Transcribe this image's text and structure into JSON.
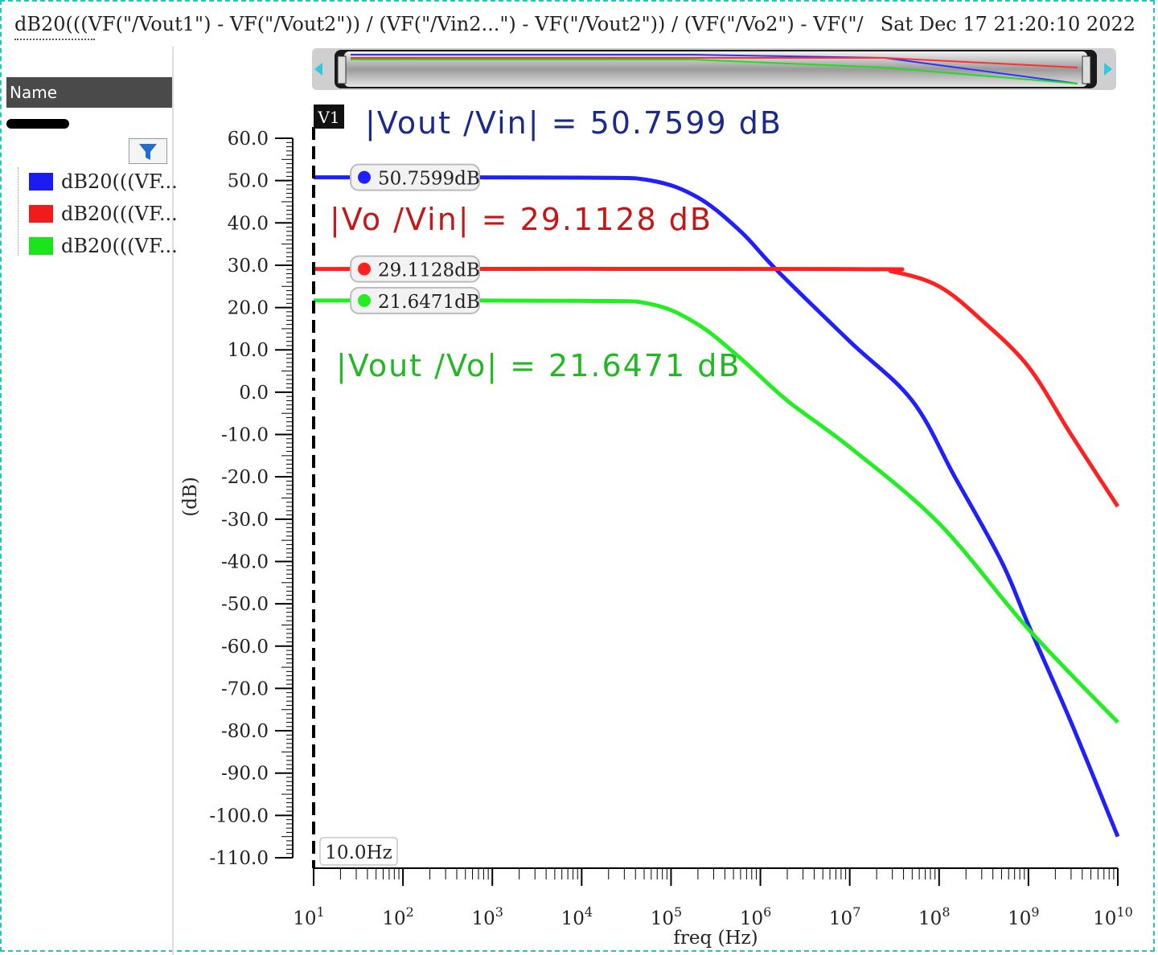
{
  "header": {
    "title": "dB20(((VF(\"/Vout1\") - VF(\"/Vout2\")) / (VF(\"/Vin2...\") - VF(\"/Vout2\")) / (VF(\"/Vo2\") - VF(\"/",
    "timestamp": "Sat Dec 17 21:20:10 2022"
  },
  "sidebar": {
    "name_header": "Name",
    "legend": [
      {
        "label": "dB20(((VF...",
        "color": "#2020ff"
      },
      {
        "label": "dB20(((VF...",
        "color": "#ff2020"
      },
      {
        "label": "dB20(((VF...",
        "color": "#22ee22"
      }
    ]
  },
  "marker": {
    "label": "V1",
    "freq_label": "10.0Hz",
    "values": [
      "50.7599dB",
      "29.1128dB",
      "21.6471dB"
    ]
  },
  "annotations": [
    {
      "text": "|Vout /Vin| = 50.7599 dB",
      "color": "#1a2a8a"
    },
    {
      "text": "|Vo /Vin| = 29.1128 dB",
      "color": "#c41818"
    },
    {
      "text": "|Vout /Vo| = 21.6471 dB",
      "color": "#22b822"
    }
  ],
  "chart_data": {
    "type": "line",
    "xlabel": "freq (Hz)",
    "ylabel": "(dB)",
    "xscale": "log",
    "xlim": [
      10,
      10000000000
    ],
    "ylim": [
      -110,
      60
    ],
    "x_ticks": [
      "10^1",
      "10^2",
      "10^3",
      "10^4",
      "10^5",
      "10^6",
      "10^7",
      "10^8",
      "10^9",
      "10^10"
    ],
    "y_ticks": [
      "60.0",
      "50.0",
      "40.0",
      "30.0",
      "20.0",
      "10.0",
      "0.0",
      "-10.0",
      "-20.0",
      "-30.0",
      "-40.0",
      "-50.0",
      "-60.0",
      "-70.0",
      "-80.0",
      "-90.0",
      "-100.0",
      "-110.0"
    ],
    "series": [
      {
        "color": "#2020ff",
        "points": [
          [
            10,
            50.76
          ],
          [
            10000,
            50.7
          ],
          [
            60000,
            50
          ],
          [
            200000,
            46
          ],
          [
            600000,
            38
          ],
          [
            1500000,
            29
          ],
          [
            10000000,
            12
          ],
          [
            50000000,
            -2
          ],
          [
            150000000,
            -20
          ],
          [
            500000000,
            -40
          ],
          [
            1000000000,
            -55
          ],
          [
            3000000000,
            -78
          ],
          [
            10000000000,
            -105
          ]
        ]
      },
      {
        "color": "#ff2020",
        "points": [
          [
            10,
            29.11
          ],
          [
            10000000,
            29.1
          ],
          [
            30000000,
            28.5
          ],
          [
            100000000,
            25
          ],
          [
            300000000,
            17
          ],
          [
            1000000000,
            6
          ],
          [
            3000000000,
            -10
          ],
          [
            10000000000,
            -27
          ]
        ]
      },
      {
        "color": "#22ee22",
        "points": [
          [
            10,
            21.65
          ],
          [
            10000,
            21.6
          ],
          [
            60000,
            20.8
          ],
          [
            200000,
            16
          ],
          [
            600000,
            8
          ],
          [
            2000000,
            -2
          ],
          [
            10000000,
            -13
          ],
          [
            100000000,
            -31
          ],
          [
            1000000000,
            -56
          ],
          [
            10000000000,
            -78
          ]
        ]
      }
    ]
  }
}
